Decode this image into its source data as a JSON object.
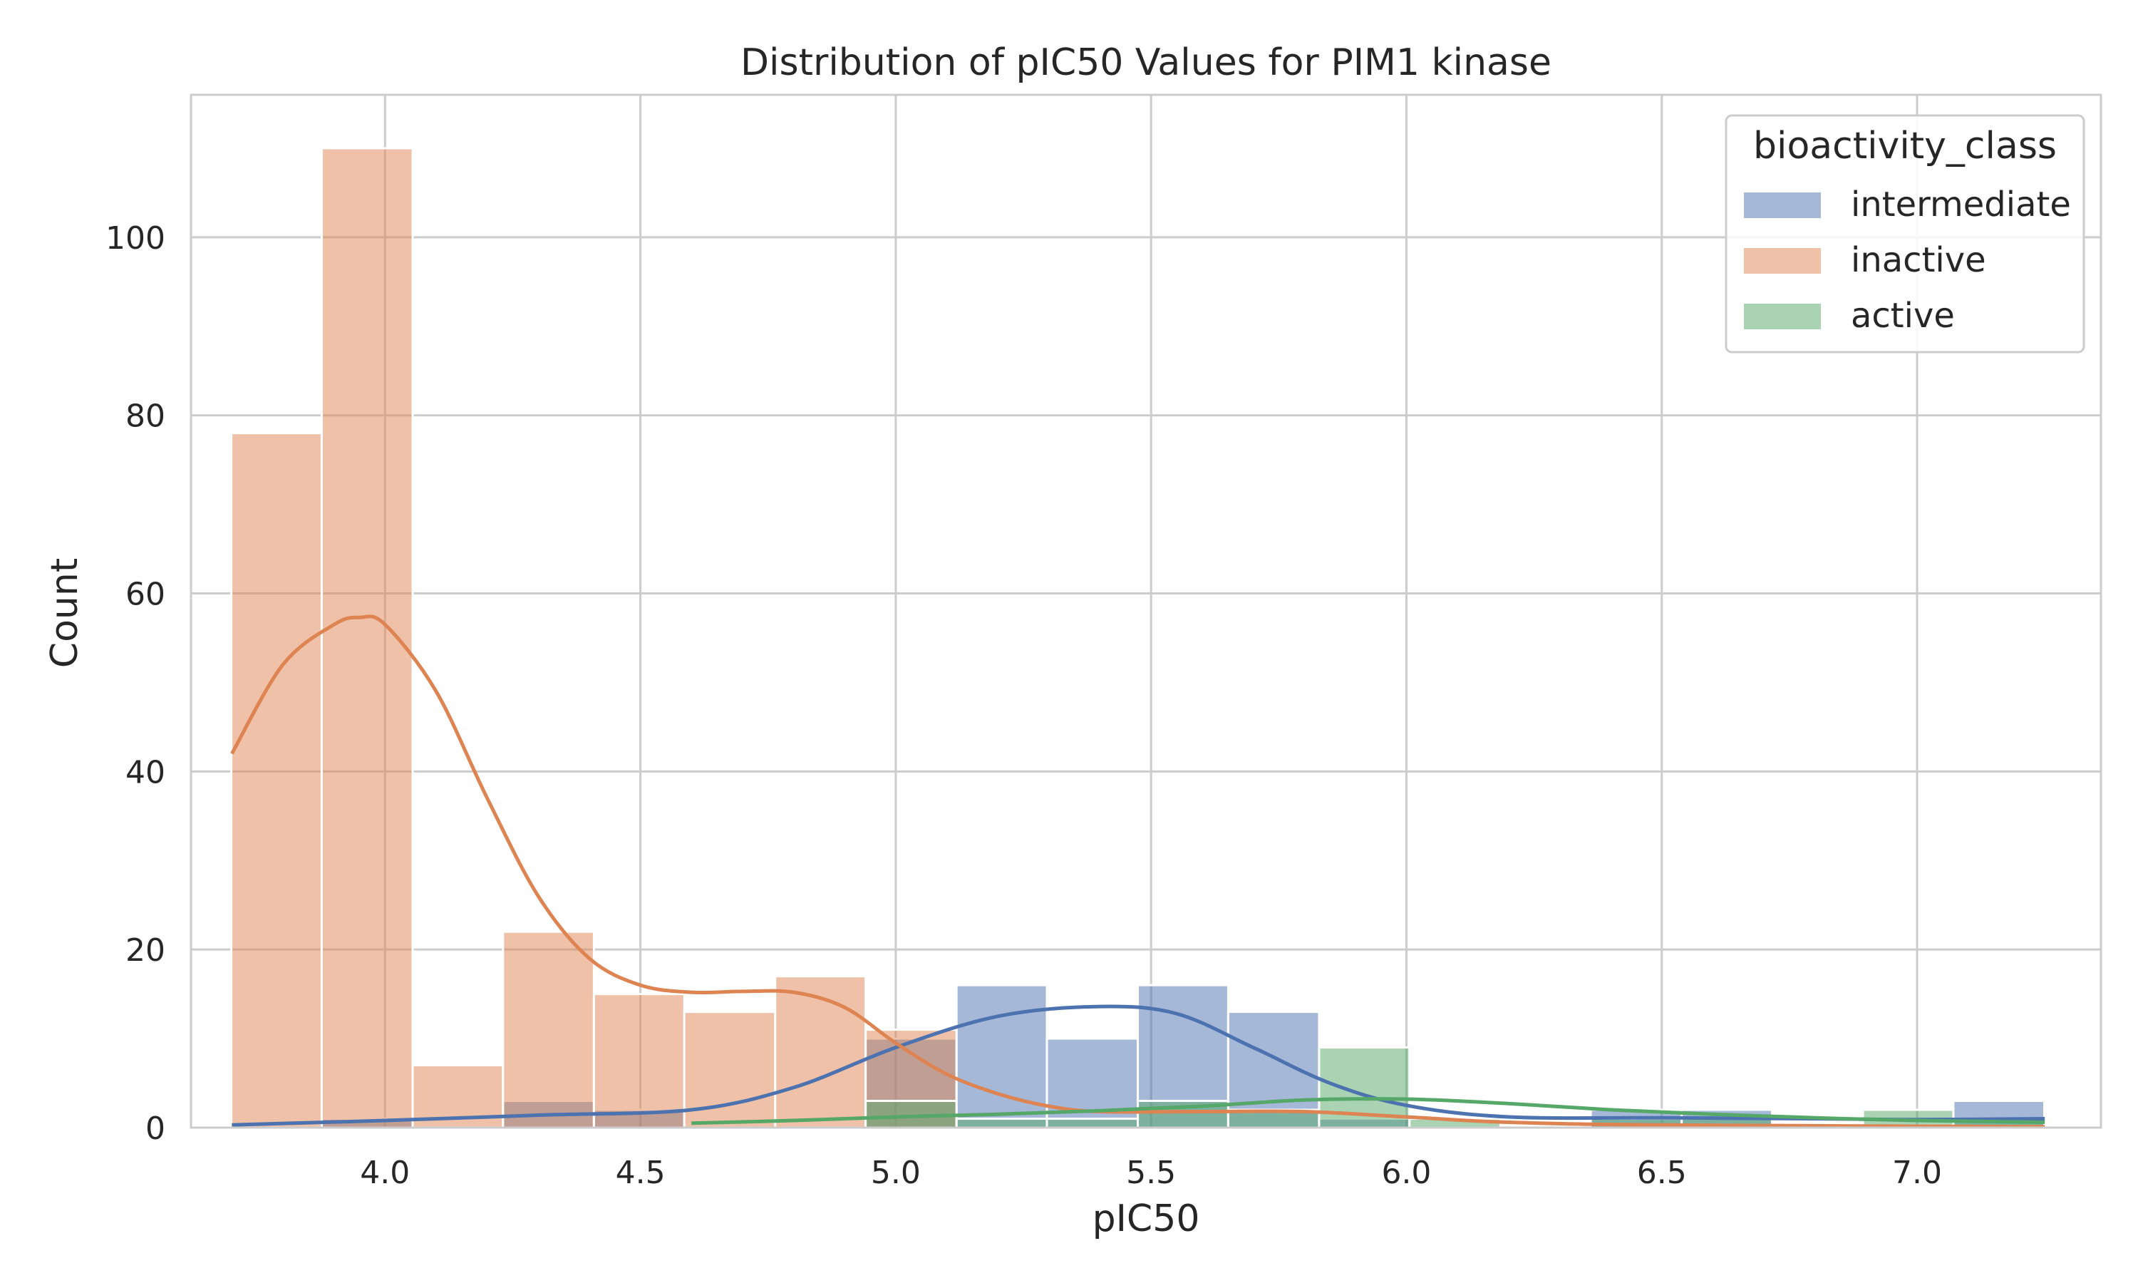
{
  "chart_data": {
    "type": "bar",
    "subtype": "histogram_with_kde",
    "title": "Distribution of pIC50 Values for PIM1 kinase",
    "xlabel": "pIC50",
    "ylabel": "Count",
    "xlim": [
      3.62,
      7.36
    ],
    "ylim": [
      0,
      116
    ],
    "xticks": [
      4.0,
      4.5,
      5.0,
      5.5,
      6.0,
      6.5,
      7.0
    ],
    "xtick_labels": [
      "4.0",
      "4.5",
      "5.0",
      "5.5",
      "6.0",
      "6.5",
      "7.0"
    ],
    "yticks": [
      0,
      20,
      40,
      60,
      80,
      100
    ],
    "ytick_labels": [
      "0",
      "20",
      "40",
      "60",
      "80",
      "100"
    ],
    "grid": true,
    "legend": {
      "title": "bioactivity_class",
      "position": "top-right"
    },
    "bin_edges": [
      3.699,
      3.876,
      4.054,
      4.231,
      4.409,
      4.586,
      4.764,
      4.941,
      5.119,
      5.296,
      5.474,
      5.651,
      5.829,
      6.006,
      6.184,
      6.361,
      6.539,
      6.716,
      6.894,
      7.071,
      7.249
    ],
    "series": [
      {
        "name": "intermediate",
        "color": "#4c72b0",
        "counts": [
          0,
          1,
          0,
          3,
          2,
          0,
          0,
          10,
          16,
          10,
          16,
          13,
          1,
          0,
          0,
          2,
          2,
          0,
          0,
          3
        ],
        "kde": [
          [
            3.7,
            0.3
          ],
          [
            4.0,
            0.8
          ],
          [
            4.3,
            1.4
          ],
          [
            4.6,
            2.0
          ],
          [
            4.8,
            4.5
          ],
          [
            5.0,
            9.0
          ],
          [
            5.2,
            12.5
          ],
          [
            5.4,
            13.6
          ],
          [
            5.55,
            12.8
          ],
          [
            5.7,
            9.0
          ],
          [
            5.85,
            5.0
          ],
          [
            6.0,
            2.5
          ],
          [
            6.2,
            1.2
          ],
          [
            6.5,
            1.1
          ],
          [
            6.8,
            1.0
          ],
          [
            7.0,
            0.9
          ],
          [
            7.25,
            1.0
          ]
        ]
      },
      {
        "name": "inactive",
        "color": "#dd8452",
        "counts": [
          78,
          110,
          7,
          22,
          15,
          13,
          17,
          11,
          0,
          0,
          0,
          0,
          0,
          0,
          0,
          0,
          0,
          0,
          0,
          0
        ],
        "kde": [
          [
            3.7,
            42
          ],
          [
            3.8,
            52
          ],
          [
            3.9,
            56.5
          ],
          [
            3.95,
            57.3
          ],
          [
            4.0,
            56.5
          ],
          [
            4.1,
            49
          ],
          [
            4.2,
            37
          ],
          [
            4.3,
            26
          ],
          [
            4.4,
            19
          ],
          [
            4.5,
            16
          ],
          [
            4.6,
            15.2
          ],
          [
            4.7,
            15.3
          ],
          [
            4.8,
            15.2
          ],
          [
            4.9,
            13.5
          ],
          [
            5.0,
            9.5
          ],
          [
            5.1,
            6
          ],
          [
            5.2,
            3.8
          ],
          [
            5.3,
            2.4
          ],
          [
            5.4,
            1.8
          ],
          [
            5.6,
            1.8
          ],
          [
            5.8,
            1.8
          ],
          [
            6.0,
            1.2
          ],
          [
            6.2,
            0.6
          ],
          [
            6.5,
            0.3
          ],
          [
            7.25,
            0.1
          ]
        ]
      },
      {
        "name": "active",
        "color": "#55a868",
        "counts": [
          0,
          0,
          0,
          0,
          0,
          0,
          0,
          3,
          1,
          1,
          3,
          2,
          9,
          1,
          0,
          1,
          1,
          0,
          2,
          1
        ],
        "kde": [
          [
            4.6,
            0.5
          ],
          [
            4.8,
            0.8
          ],
          [
            5.0,
            1.2
          ],
          [
            5.2,
            1.5
          ],
          [
            5.4,
            1.9
          ],
          [
            5.6,
            2.4
          ],
          [
            5.8,
            3.1
          ],
          [
            6.0,
            3.2
          ],
          [
            6.2,
            2.7
          ],
          [
            6.4,
            2.0
          ],
          [
            6.6,
            1.5
          ],
          [
            6.8,
            1.1
          ],
          [
            7.0,
            0.8
          ],
          [
            7.25,
            0.6
          ]
        ]
      }
    ]
  }
}
